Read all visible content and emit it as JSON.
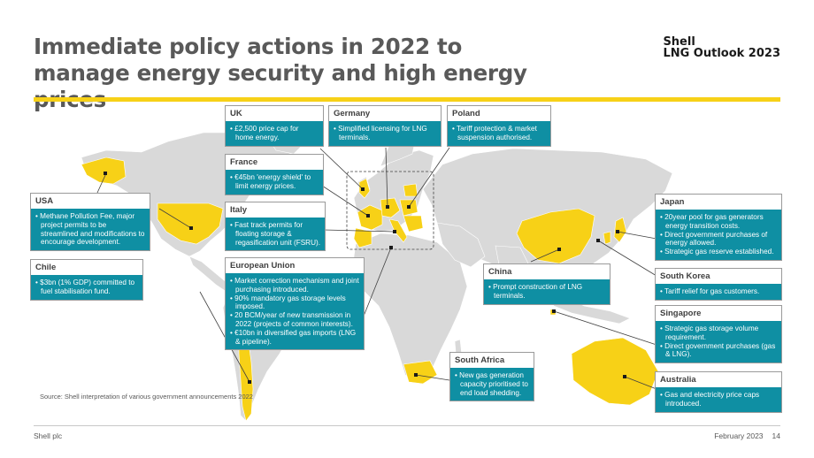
{
  "title": "Immediate policy actions in 2022 to manage energy security and high energy prices",
  "brand": {
    "line1": "Shell",
    "line2": "LNG Outlook 2023"
  },
  "colors": {
    "accent": "#f7d117",
    "box": "#0f8fa3",
    "land": "#d9d9d9"
  },
  "cards": {
    "uk": {
      "header": "UK",
      "items": [
        "£2,500 price cap for home energy."
      ]
    },
    "germany": {
      "header": "Germany",
      "items": [
        "Simplified licensing for LNG terminals."
      ]
    },
    "poland": {
      "header": "Poland",
      "items": [
        "Tariff protection & market suspension authorised."
      ]
    },
    "france": {
      "header": "France",
      "items": [
        "€45bn 'energy shield' to limit energy prices."
      ]
    },
    "usa": {
      "header": "USA",
      "items": [
        "Methane Pollution Fee, major project permits to be streamlined and modifications to encourage development."
      ]
    },
    "italy": {
      "header": "Italy",
      "items": [
        "Fast track permits for floating storage & regasification unit (FSRU)."
      ]
    },
    "chile": {
      "header": "Chile",
      "items": [
        "$3bn (1% GDP) committed to fuel stabilisation fund."
      ]
    },
    "eu": {
      "header": "European Union",
      "items": [
        "Market correction mechanism and joint purchasing introduced.",
        "90% mandatory gas storage levels imposed.",
        "20 BCM/year of new transmission in 2022 (projects of common interests).",
        "€10bn in diversified gas imports (LNG & pipeline)."
      ]
    },
    "china": {
      "header": "China",
      "items": [
        "Prompt construction of LNG terminals."
      ]
    },
    "japan": {
      "header": "Japan",
      "items": [
        "20year pool for gas generators energy transition costs.",
        "Direct government purchases of energy allowed.",
        "Strategic gas reserve established."
      ]
    },
    "south_korea": {
      "header": "South Korea",
      "items": [
        "Tariff relief for gas customers."
      ]
    },
    "singapore": {
      "header": "Singapore",
      "items": [
        "Strategic gas storage volume requirement.",
        "Direct government purchases (gas & LNG)."
      ]
    },
    "south_africa": {
      "header": "South Africa",
      "items": [
        "New gas generation capacity prioritised to end load shedding."
      ]
    },
    "australia": {
      "header": "Australia",
      "items": [
        "Gas and electricity price caps introduced."
      ]
    }
  },
  "source": "Source: Shell interpretation of various government announcements 2022",
  "footer": {
    "left": "Shell plc",
    "date": "February 2023",
    "page": "14"
  }
}
